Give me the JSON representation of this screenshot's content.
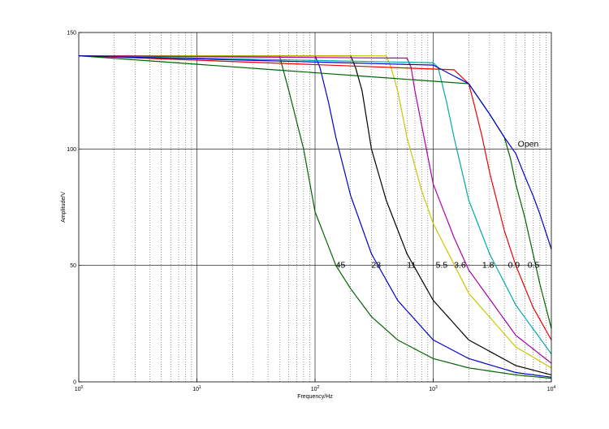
{
  "chart_data": {
    "type": "line",
    "xlabel": "Frequency/Hz",
    "ylabel": "Amplitude/V",
    "xscale": "log",
    "xlim": [
      1,
      10000
    ],
    "ylim": [
      0,
      150
    ],
    "grid": true,
    "x_ticks": [
      {
        "base": "10",
        "exp": "0"
      },
      {
        "base": "10",
        "exp": "1"
      },
      {
        "base": "10",
        "exp": "2"
      },
      {
        "base": "10",
        "exp": "3"
      },
      {
        "base": "10",
        "exp": "4"
      }
    ],
    "y_ticks": [
      "0",
      "50",
      "100",
      "150"
    ],
    "series": [
      {
        "label": "45",
        "color": "#006400",
        "points": [
          [
            1,
            140
          ],
          [
            50,
            140
          ],
          [
            60,
            125
          ],
          [
            80,
            100
          ],
          [
            100,
            73
          ],
          [
            150,
            50
          ],
          [
            200,
            40
          ],
          [
            300,
            28
          ],
          [
            500,
            18
          ],
          [
            1000,
            10
          ],
          [
            2000,
            6
          ],
          [
            5000,
            3
          ],
          [
            10000,
            1.5
          ]
        ]
      },
      {
        "label": "23",
        "color": "#0000cc",
        "points": [
          [
            1,
            140
          ],
          [
            100,
            140
          ],
          [
            110,
            135
          ],
          [
            130,
            120
          ],
          [
            150,
            105
          ],
          [
            200,
            80
          ],
          [
            300,
            55
          ],
          [
            500,
            35
          ],
          [
            1000,
            18
          ],
          [
            2000,
            10
          ],
          [
            5000,
            4
          ],
          [
            10000,
            2
          ]
        ]
      },
      {
        "label": "11",
        "color": "#000000",
        "points": [
          [
            1,
            140
          ],
          [
            200,
            140
          ],
          [
            220,
            135
          ],
          [
            250,
            125
          ],
          [
            300,
            100
          ],
          [
            400,
            78
          ],
          [
            600,
            55
          ],
          [
            1000,
            35
          ],
          [
            2000,
            18
          ],
          [
            5000,
            7
          ],
          [
            10000,
            3
          ]
        ]
      },
      {
        "label": "5.5",
        "color": "#c8c800",
        "points": [
          [
            1,
            140
          ],
          [
            400,
            140
          ],
          [
            440,
            135
          ],
          [
            500,
            125
          ],
          [
            600,
            105
          ],
          [
            800,
            82
          ],
          [
            1000,
            68
          ],
          [
            2000,
            38
          ],
          [
            5000,
            15
          ],
          [
            10000,
            6
          ]
        ]
      },
      {
        "label": "3.6",
        "color": "#aa00aa",
        "points": [
          [
            1,
            140
          ],
          [
            600,
            139
          ],
          [
            650,
            135
          ],
          [
            700,
            125
          ],
          [
            800,
            110
          ],
          [
            1000,
            85
          ],
          [
            1500,
            62
          ],
          [
            2000,
            48
          ],
          [
            5000,
            20
          ],
          [
            10000,
            8
          ]
        ]
      },
      {
        "label": "1.8",
        "color": "#00aaaa",
        "points": [
          [
            1,
            140
          ],
          [
            1000,
            137
          ],
          [
            1100,
            135
          ],
          [
            1300,
            120
          ],
          [
            1500,
            105
          ],
          [
            2000,
            78
          ],
          [
            3000,
            55
          ],
          [
            5000,
            33
          ],
          [
            10000,
            12
          ]
        ]
      },
      {
        "label": "0.9",
        "color": "#ee0000",
        "points": [
          [
            1,
            140
          ],
          [
            1500,
            134
          ],
          [
            2000,
            128
          ],
          [
            2200,
            120
          ],
          [
            2600,
            105
          ],
          [
            3000,
            90
          ],
          [
            4000,
            65
          ],
          [
            5000,
            50
          ],
          [
            7000,
            32
          ],
          [
            10000,
            18
          ]
        ]
      },
      {
        "label": "0.5",
        "color": "#006400",
        "points": [
          [
            1,
            140
          ],
          [
            2000,
            128
          ],
          [
            3000,
            115
          ],
          [
            4000,
            105
          ],
          [
            4500,
            96
          ],
          [
            5000,
            85
          ],
          [
            6000,
            70
          ],
          [
            7000,
            55
          ],
          [
            8000,
            42
          ],
          [
            10000,
            23
          ]
        ]
      },
      {
        "label": "Open",
        "color": "#0000cc",
        "points": [
          [
            1,
            140
          ],
          [
            1000,
            136
          ],
          [
            2000,
            128
          ],
          [
            3000,
            115
          ],
          [
            4000,
            105
          ],
          [
            5000,
            98
          ],
          [
            6000,
            88
          ],
          [
            7000,
            80
          ],
          [
            8000,
            72
          ],
          [
            10000,
            57
          ]
        ]
      }
    ],
    "annotations": [
      {
        "text": "45",
        "x": 150,
        "y": 49
      },
      {
        "text": "23",
        "x": 300,
        "y": 49
      },
      {
        "text": "11",
        "x": 600,
        "y": 49
      },
      {
        "text": "5.5",
        "x": 1050,
        "y": 49
      },
      {
        "text": "3.6",
        "x": 1500,
        "y": 49
      },
      {
        "text": "1.8",
        "x": 2600,
        "y": 49
      },
      {
        "text": "0.9",
        "x": 4300,
        "y": 49
      },
      {
        "text": "0.5",
        "x": 6300,
        "y": 49
      },
      {
        "text": "Open",
        "x": 5200,
        "y": 101
      }
    ]
  }
}
